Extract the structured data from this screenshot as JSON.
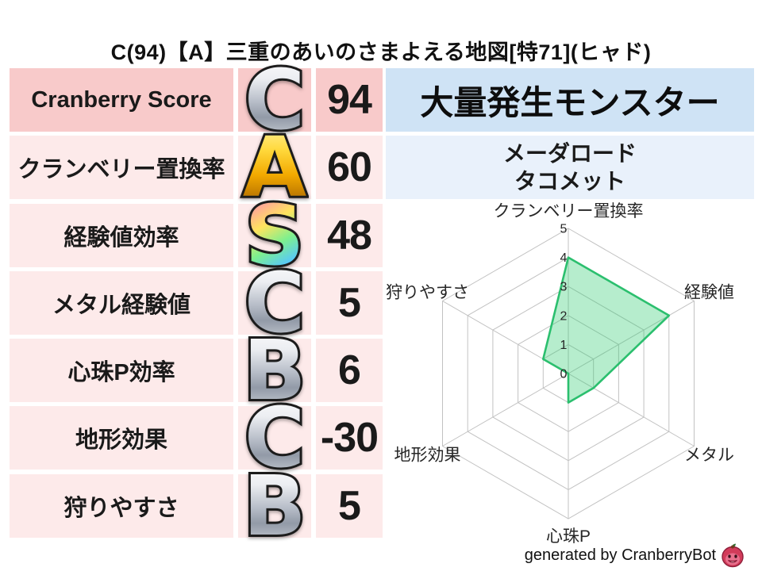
{
  "title": "C(94)【A】三重のあいのさまよえる地図[特71](ヒャド)",
  "stats_table": {
    "rows": [
      {
        "label": "Cranberry Score",
        "grade": "C",
        "style": "silver",
        "value": "94",
        "highlight": true
      },
      {
        "label": "クランベリー置換率",
        "grade": "A",
        "style": "gold",
        "value": "60"
      },
      {
        "label": "経験値効率",
        "grade": "S",
        "style": "rainbow",
        "value": "48"
      },
      {
        "label": "メタル経験値",
        "grade": "C",
        "style": "silver",
        "value": "5"
      },
      {
        "label": "心珠P効率",
        "grade": "B",
        "style": "silver",
        "value": "6"
      },
      {
        "label": "地形効果",
        "grade": "C",
        "style": "silver",
        "value": "-30"
      },
      {
        "label": "狩りやすさ",
        "grade": "B",
        "style": "silver",
        "value": "5"
      }
    ]
  },
  "monsters": {
    "header": "大量発生モンスター",
    "names": [
      "メーダロード",
      "タコメット"
    ]
  },
  "chart_data": {
    "type": "radar",
    "categories": [
      "クランベリー置換率",
      "経験値",
      "メタル",
      "心珠P",
      "地形効果",
      "狩りやすさ"
    ],
    "values": [
      4,
      4,
      1,
      1,
      0,
      1
    ],
    "scale_min": 0,
    "scale_max": 5,
    "ticks": [
      0,
      1,
      2,
      3,
      4,
      5
    ],
    "grid_on": true,
    "legend": "none",
    "grid_color": "#c2c2c2",
    "line_color": "#2bbf6e",
    "fill_color": "rgba(46,204,113,0.35)",
    "label_color": "#262626"
  },
  "colors": {
    "highlight_row_bg": "#f8caca",
    "row_bg": "#fdeaea",
    "monster_header_bg": "#cfe3f5",
    "monster_list_bg": "#e9f1fb",
    "grade_silver": "#b7bdc8",
    "grade_gold": "#f2a900",
    "logo_berry": "#d23b5a",
    "logo_leaf": "#2e6b2e"
  },
  "footer": {
    "credit": "generated by CranberryBot",
    "icon": "cranberry-logo-icon"
  }
}
